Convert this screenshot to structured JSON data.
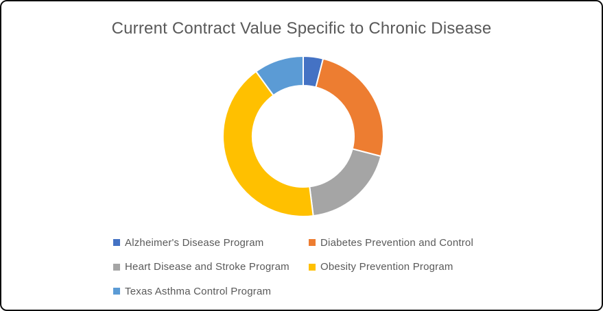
{
  "window": {
    "background": "#FFFFFF",
    "border_color": "#0D0D0D"
  },
  "chart_data": {
    "type": "pie",
    "subtype": "donut",
    "title": "Current Contract Value Specific to Chronic Disease",
    "title_color": "#595959",
    "legend_position": "bottom",
    "legend_text_color": "#595959",
    "grid": false,
    "direction": "clockwise",
    "start_angle_deg": 0,
    "donut_hole_ratio": 0.63,
    "categories": [
      "Alzheimer's Disease Program",
      "Diabetes Prevention and Control",
      "Heart Disease and Stroke Program",
      "Obesity Prevention Program",
      "Texas Asthma Control Program"
    ],
    "values_pct_estimated": [
      4,
      25,
      19,
      42,
      10
    ],
    "colors": [
      "#4472C4",
      "#ED7D31",
      "#A5A5A5",
      "#FFC000",
      "#5B9BD5"
    ]
  }
}
